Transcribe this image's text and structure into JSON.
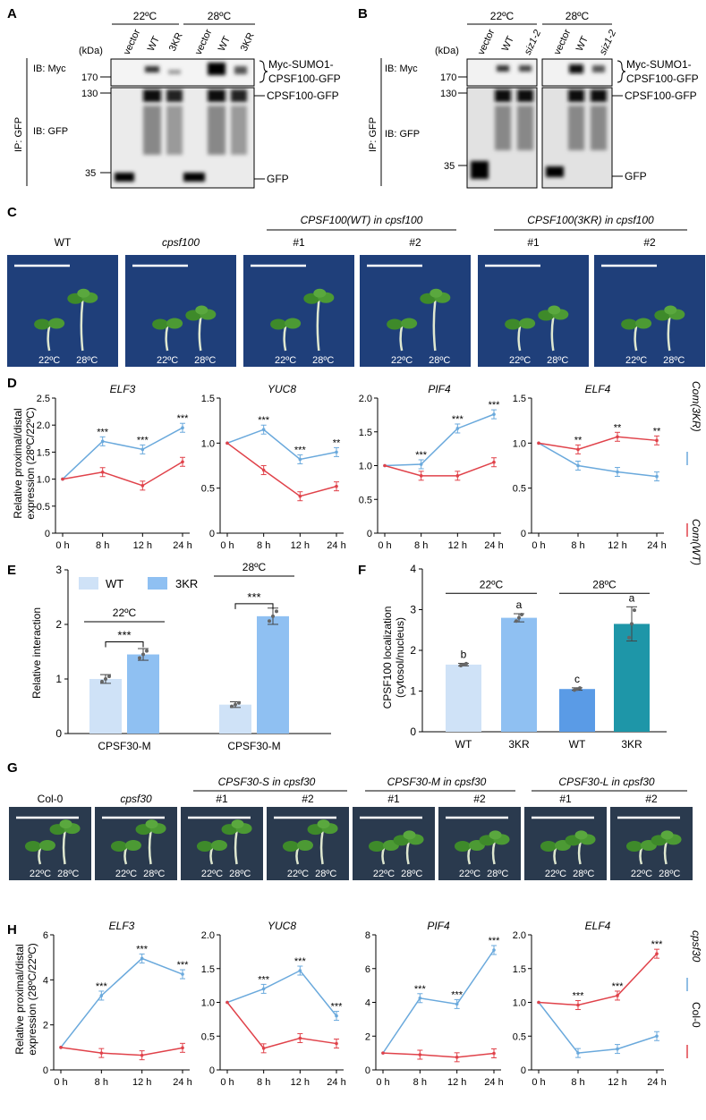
{
  "colors": {
    "red": "#e0424a",
    "blue": "#6aa9dc",
    "wt_bar": "#cfe2f7",
    "kr_bar": "#8fc0f2",
    "f_bar1": "#cfe2f7",
    "f_bar2": "#8fc0f2",
    "f_bar3": "#5a9be6",
    "f_bar4": "#1e96a8",
    "photo_bg": "#1f3f7a",
    "photo_bg_g": "#2a3a4e",
    "plant": "#3e8a2a"
  },
  "panelA": {
    "letter": "A",
    "temps": [
      "22ºC",
      "28ºC"
    ],
    "lanes": [
      "vector",
      "WT",
      "3KR",
      "vector",
      "WT",
      "3KR"
    ],
    "kda": "(kDa)",
    "ib_myc": "IB: Myc",
    "ib_gfp": "IB: GFP",
    "ip": "IP: GFP",
    "markers": [
      "170",
      "130",
      "35"
    ],
    "band_labels": [
      "Myc-SUMO1-",
      "CPSF100-GFP",
      "CPSF100-GFP",
      "GFP"
    ]
  },
  "panelB": {
    "letter": "B",
    "temps": [
      "22ºC",
      "28ºC"
    ],
    "lanes": [
      "vector",
      "WT",
      "siz1-2",
      "vector",
      "WT",
      "siz1-2"
    ],
    "kda": "(kDa)",
    "ib_myc": "IB: Myc",
    "ib_gfp": "IB: GFP",
    "ip": "IP: GFP",
    "markers": [
      "170",
      "130",
      "35"
    ],
    "band_labels": [
      "Myc-SUMO1-",
      "CPSF100-GFP",
      "CPSF100-GFP",
      "GFP"
    ]
  },
  "panelC": {
    "letter": "C",
    "group1": "CPSF100(WT) in cpsf100",
    "group2": "CPSF100(3KR) in cpsf100",
    "labels": [
      "WT",
      "cpsf100",
      "#1",
      "#2",
      "#1",
      "#2"
    ],
    "temp_a": "22ºC",
    "temp_b": "28ºC"
  },
  "panelD": {
    "letter": "D",
    "ylabel1": "Relative proximal/distal",
    "ylabel2": "expression (28ºC/22ºC)",
    "legend": [
      "Com(3KR)",
      "Com(WT)"
    ],
    "chart_data": [
      {
        "type": "line",
        "title": "ELF3",
        "categories": [
          "0 h",
          "8 h",
          "12 h",
          "24 h"
        ],
        "ylim": [
          0,
          2.5
        ],
        "yticks": [
          "0",
          "0.5",
          "1.0",
          "1.5",
          "2.0",
          "2.5"
        ],
        "series": [
          {
            "name": "Com(3KR)",
            "values": [
              1.0,
              1.7,
              1.55,
              1.95
            ]
          },
          {
            "name": "Com(WT)",
            "values": [
              1.0,
              1.13,
              0.88,
              1.32
            ]
          }
        ],
        "annotations": [
          "***",
          "***",
          "***"
        ]
      },
      {
        "type": "line",
        "title": "YUC8",
        "categories": [
          "0 h",
          "8 h",
          "12 h",
          "24 h"
        ],
        "ylim": [
          0,
          1.5
        ],
        "yticks": [
          "0",
          "0.5",
          "1.0",
          "1.5"
        ],
        "series": [
          {
            "name": "Com(3KR)",
            "values": [
              1.0,
              1.15,
              0.82,
              0.9
            ]
          },
          {
            "name": "Com(WT)",
            "values": [
              1.0,
              0.7,
              0.41,
              0.52
            ]
          }
        ],
        "annotations": [
          "***",
          "***",
          "**"
        ]
      },
      {
        "type": "line",
        "title": "PIF4",
        "categories": [
          "0 h",
          "8 h",
          "12 h",
          "24 h"
        ],
        "ylim": [
          0,
          2.0
        ],
        "yticks": [
          "0",
          "0.5",
          "1.0",
          "1.5",
          "2.0"
        ],
        "series": [
          {
            "name": "Com(3KR)",
            "values": [
              1.0,
              1.02,
              1.55,
              1.76
            ]
          },
          {
            "name": "Com(WT)",
            "values": [
              1.0,
              0.85,
              0.85,
              1.05
            ]
          }
        ],
        "annotations": [
          "***",
          "***",
          "***"
        ]
      },
      {
        "type": "line",
        "title": "ELF4",
        "categories": [
          "0 h",
          "8 h",
          "12 h",
          "24 h"
        ],
        "ylim": [
          0,
          1.5
        ],
        "yticks": [
          "0",
          "0.5",
          "1.0",
          "1.5"
        ],
        "series": [
          {
            "name": "Com(3KR)",
            "values": [
              1.0,
              0.75,
              0.68,
              0.63
            ]
          },
          {
            "name": "Com(WT)",
            "values": [
              1.0,
              0.93,
              1.07,
              1.03
            ]
          }
        ],
        "annotations": [
          "**",
          "**",
          "**"
        ]
      }
    ]
  },
  "panelE": {
    "letter": "E",
    "legend": [
      "WT",
      "3KR"
    ],
    "chart_data": {
      "type": "bar",
      "ylabel": "Relative interaction",
      "ylim": [
        0,
        3
      ],
      "yticks": [
        "0",
        "1",
        "2",
        "3"
      ],
      "categories": [
        "CPSF30-M",
        "CPSF30-M"
      ],
      "groups": [
        "22ºC",
        "28ºC"
      ],
      "series": [
        {
          "name": "WT",
          "values": [
            1.0,
            0.53
          ]
        },
        {
          "name": "3KR",
          "values": [
            1.45,
            2.15
          ]
        }
      ],
      "annotations": [
        "***",
        "***"
      ]
    }
  },
  "panelF": {
    "letter": "F",
    "chart_data": {
      "type": "bar",
      "ylabel1": "CPSF100 localization",
      "ylabel2": "(cytosol/nucleus)",
      "ylim": [
        0,
        4
      ],
      "yticks": [
        "0",
        "1",
        "2",
        "3",
        "4"
      ],
      "categories": [
        "WT",
        "3KR",
        "WT",
        "3KR"
      ],
      "groups": [
        "22ºC",
        "28ºC"
      ],
      "values": [
        1.65,
        2.8,
        1.05,
        2.65
      ],
      "letters": [
        "b",
        "a",
        "c",
        "a"
      ]
    }
  },
  "panelG": {
    "letter": "G",
    "group1": "CPSF30-S in cpsf30",
    "group2": "CPSF30-M in cpsf30",
    "group3": "CPSF30-L in cpsf30",
    "labels": [
      "Col-0",
      "cpsf30",
      "#1",
      "#2",
      "#1",
      "#2",
      "#1",
      "#2"
    ],
    "temp_a": "22ºC",
    "temp_b": "28ºC"
  },
  "panelH": {
    "letter": "H",
    "ylabel1": "Relative proximal/distal",
    "ylabel2": "expression (28ºC/22ºC)",
    "legend": [
      "cpsf30",
      "Col-0"
    ],
    "chart_data": [
      {
        "type": "line",
        "title": "ELF3",
        "categories": [
          "0 h",
          "8 h",
          "12 h",
          "24 h"
        ],
        "ylim": [
          0,
          6
        ],
        "yticks": [
          "0",
          "2",
          "4",
          "6"
        ],
        "series": [
          {
            "name": "cpsf30",
            "values": [
              1.0,
              3.3,
              4.95,
              4.25
            ]
          },
          {
            "name": "Col-0",
            "values": [
              1.0,
              0.75,
              0.65,
              0.98
            ]
          }
        ],
        "annotations": [
          "***",
          "***",
          "***"
        ]
      },
      {
        "type": "line",
        "title": "YUC8",
        "categories": [
          "0 h",
          "8 h",
          "12 h",
          "24 h"
        ],
        "ylim": [
          0,
          2.0
        ],
        "yticks": [
          "0",
          "0.5",
          "1.0",
          "1.5",
          "2.0"
        ],
        "series": [
          {
            "name": "cpsf30",
            "values": [
              1.0,
              1.2,
              1.47,
              0.8
            ]
          },
          {
            "name": "Col-0",
            "values": [
              1.0,
              0.32,
              0.47,
              0.39
            ]
          }
        ],
        "annotations": [
          "***",
          "***",
          "***"
        ]
      },
      {
        "type": "line",
        "title": "PIF4",
        "categories": [
          "0 h",
          "8 h",
          "12 h",
          "24 h"
        ],
        "ylim": [
          0,
          8
        ],
        "yticks": [
          "0",
          "2",
          "4",
          "6",
          "8"
        ],
        "series": [
          {
            "name": "cpsf30",
            "values": [
              1.0,
              4.25,
              3.9,
              7.1
            ]
          },
          {
            "name": "Col-0",
            "values": [
              1.0,
              0.9,
              0.75,
              0.98
            ]
          }
        ],
        "annotations": [
          "***",
          "***",
          "***"
        ]
      },
      {
        "type": "line",
        "title": "ELF4",
        "categories": [
          "0 h",
          "8 h",
          "12 h",
          "24 h"
        ],
        "ylim": [
          0,
          2.0
        ],
        "yticks": [
          "0",
          "0.5",
          "1.0",
          "1.5",
          "2.0"
        ],
        "series": [
          {
            "name": "cpsf30",
            "values": [
              1.0,
              0.25,
              0.31,
              0.5
            ]
          },
          {
            "name": "Col-0",
            "values": [
              1.0,
              0.96,
              1.1,
              1.72
            ]
          }
        ],
        "annotations": [
          "***",
          "***",
          "***"
        ]
      }
    ]
  }
}
